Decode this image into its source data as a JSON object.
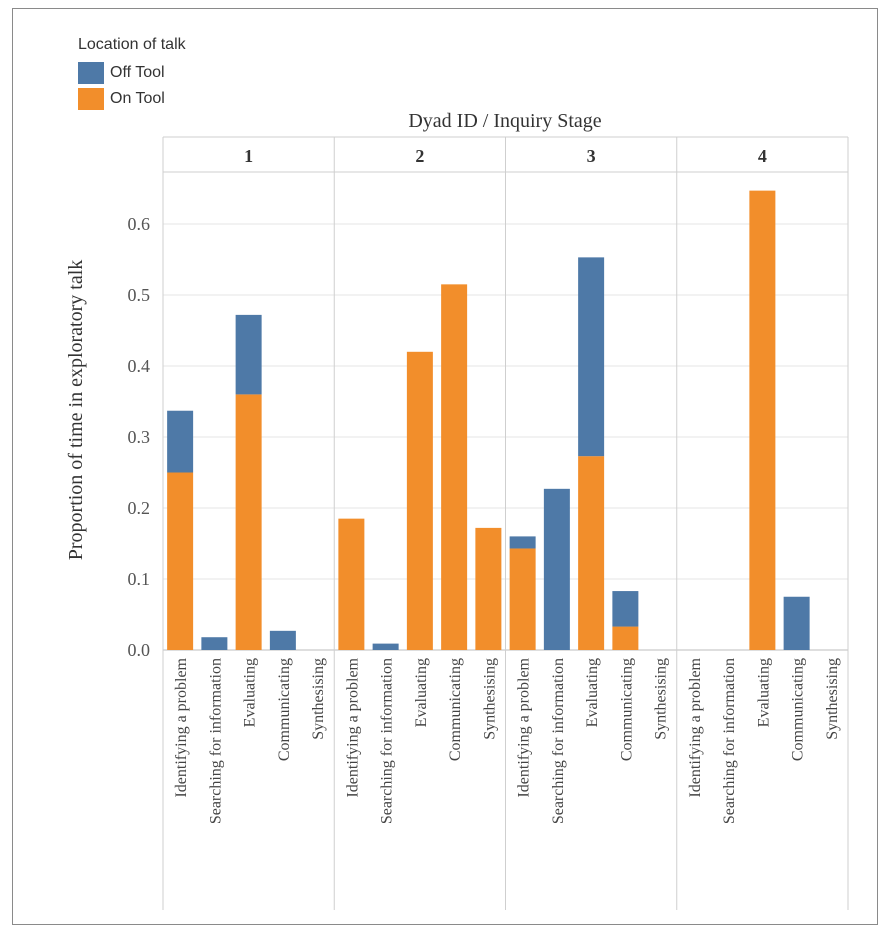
{
  "legend": {
    "title": "Location of talk",
    "items": [
      {
        "label": "Off Tool",
        "color": "#4e79a7"
      },
      {
        "label": "On Tool",
        "color": "#f28e2b"
      }
    ]
  },
  "chart_data": {
    "type": "bar",
    "stacked": true,
    "header_title": "Dyad ID / Inquiry Stage",
    "ylabel": "Proportion of time in exploratory talk",
    "ylim": [
      0,
      0.68
    ],
    "yticks": [
      "0.0",
      "0.1",
      "0.2",
      "0.3",
      "0.4",
      "0.5",
      "0.6"
    ],
    "grid": true,
    "legend_position": "top-left",
    "panels": [
      "1",
      "2",
      "3",
      "4"
    ],
    "categories": [
      "Identifying a problem",
      "Searching for information",
      "Evaluating",
      "Communicating",
      "Synthesising"
    ],
    "series": [
      {
        "name": "On Tool",
        "color": "#f28e2b",
        "values": [
          [
            0.25,
            0.0,
            0.36,
            0.0,
            0.0
          ],
          [
            0.185,
            0.0,
            0.42,
            0.515,
            0.172
          ],
          [
            0.143,
            0.0,
            0.273,
            0.033,
            0.0
          ],
          [
            0.0,
            0.0,
            0.647,
            0.0,
            0.0
          ]
        ]
      },
      {
        "name": "Off Tool",
        "color": "#4e79a7",
        "values": [
          [
            0.087,
            0.018,
            0.112,
            0.027,
            0.0
          ],
          [
            0.0,
            0.009,
            0.0,
            0.0,
            0.0
          ],
          [
            0.017,
            0.227,
            0.28,
            0.05,
            0.0
          ],
          [
            0.0,
            0.0,
            0.0,
            0.075,
            0.0
          ]
        ]
      }
    ]
  }
}
